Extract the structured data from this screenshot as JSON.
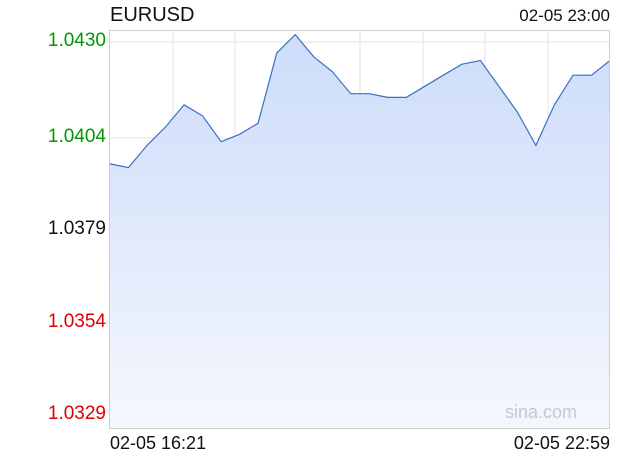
{
  "header": {
    "symbol": "EURUSD",
    "datetime": "02-05 23:00"
  },
  "watermark": "sina.com",
  "colors": {
    "up": "#009900",
    "neutral": "#111111",
    "down": "#dd0000",
    "line": "#3a6fc7",
    "fill": "#d3e1fb"
  },
  "chart_data": {
    "type": "area",
    "ylim": [
      1.0329,
      1.043
    ],
    "yticks": [
      {
        "label": "1.0430",
        "value": 1.043,
        "tone": "up"
      },
      {
        "label": "1.0404",
        "value": 1.0404,
        "tone": "up"
      },
      {
        "label": "1.0379",
        "value": 1.0379,
        "tone": "neutral"
      },
      {
        "label": "1.0354",
        "value": 1.0354,
        "tone": "down"
      },
      {
        "label": "1.0329",
        "value": 1.0329,
        "tone": "down"
      }
    ],
    "reference_value": 1.0379,
    "x_labels": {
      "start": "02-05 16:21",
      "end": "02-05 22:59"
    },
    "x": [
      "16:21",
      "16:35",
      "16:50",
      "17:05",
      "17:20",
      "17:35",
      "17:50",
      "18:05",
      "18:20",
      "18:35",
      "18:50",
      "19:05",
      "19:20",
      "19:35",
      "19:50",
      "20:05",
      "20:20",
      "20:35",
      "20:50",
      "21:05",
      "21:20",
      "21:35",
      "21:50",
      "22:05",
      "22:20",
      "22:35",
      "22:50",
      "22:59"
    ],
    "series": [
      {
        "values": [
          1.0397,
          1.0396,
          1.0402,
          1.0407,
          1.0413,
          1.041,
          1.0403,
          1.0405,
          1.0408,
          1.0427,
          1.0432,
          1.0426,
          1.0422,
          1.0416,
          1.0416,
          1.0415,
          1.0415,
          1.0418,
          1.0421,
          1.0424,
          1.0425,
          1.0418,
          1.0411,
          1.0402,
          1.0413,
          1.0421,
          1.0421,
          1.0425
        ]
      }
    ]
  }
}
